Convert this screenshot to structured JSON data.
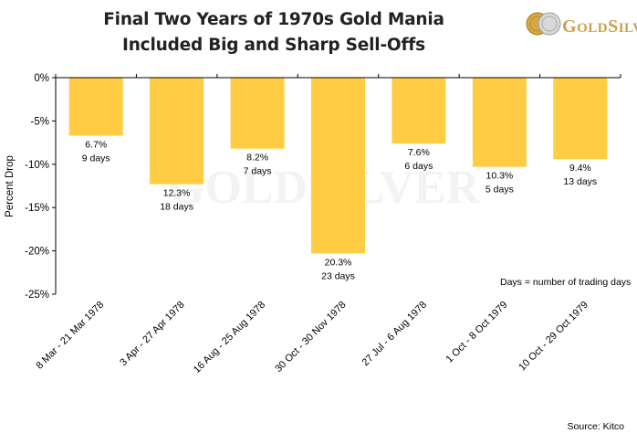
{
  "title_line1": "Final Two Years of 1970s Gold Mania",
  "title_line2": "Included Big and Sharp Sell-Offs",
  "logo": {
    "text_g": "G",
    "text_old": "OLD",
    "text_s": "S",
    "text_ilver": "ILVER",
    "icon": "gold-silver-coins-icon"
  },
  "watermark": "GOLDSILVER",
  "note": "Days = number of trading days",
  "source": "Source: Kitco",
  "colors": {
    "bar": "#FFCC44",
    "axis": "#000000",
    "watermark": "#f3f3f3"
  },
  "chart_data": {
    "type": "bar",
    "title": "Final Two Years of 1970s Gold Mania Included Big and Sharp Sell-Offs",
    "xlabel": "",
    "ylabel": "Percent Drop",
    "ylim": [
      -25,
      0
    ],
    "yticks": [
      0,
      -5,
      -10,
      -15,
      -20,
      -25
    ],
    "ytick_labels": [
      "0%",
      "-5%",
      "-10%",
      "-15%",
      "-20%",
      "-25%"
    ],
    "grid": false,
    "categories": [
      "8 Mar - 21 Mar 1978",
      "3 Apr - 27 Apr 1978",
      "16 Aug - 25 Aug 1978",
      "30 Oct - 30 Nov 1978",
      "27 Jul - 6 Aug 1978",
      "1 Oct - 8 Oct 1979",
      "10 Oct - 29 Oct 1979"
    ],
    "values": [
      -6.7,
      -12.3,
      -8.2,
      -20.3,
      -7.6,
      -10.3,
      -9.4
    ],
    "value_labels": [
      "6.7%",
      "12.3%",
      "8.2%",
      "20.3%",
      "7.6%",
      "10.3%",
      "9.4%"
    ],
    "days_labels": [
      "9 days",
      "18 days",
      "7 days",
      "23 days",
      "6 days",
      "5 days",
      "13 days"
    ]
  }
}
